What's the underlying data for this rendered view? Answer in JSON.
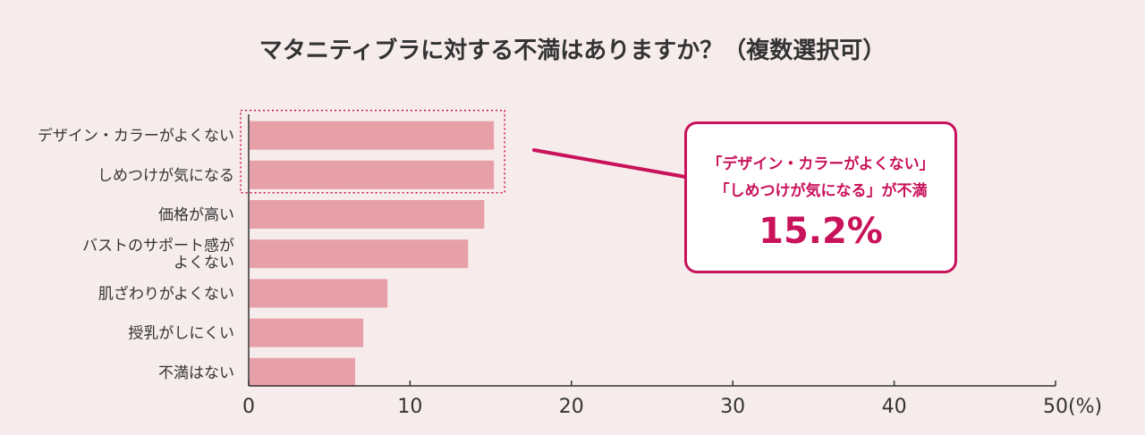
{
  "chart_data": {
    "type": "bar",
    "orientation": "horizontal",
    "title": "マタニティブラに対する不満はありますか？（複数選択可）",
    "categories": [
      [
        "デザイン・カラーがよくない"
      ],
      [
        "しめつけが気になる"
      ],
      [
        "価格が高い"
      ],
      [
        "バストのサポート感が",
        "よくない"
      ],
      [
        "肌ざわりがよくない"
      ],
      [
        "授乳がしにくい"
      ],
      [
        "不満はない"
      ]
    ],
    "values": [
      15.2,
      15.2,
      14.6,
      13.6,
      8.6,
      7.1,
      6.6
    ],
    "xlim": [
      0,
      50
    ],
    "xticks": [
      "0",
      "10",
      "20",
      "30",
      "40",
      "50"
    ],
    "x_unit": "(%)",
    "bar_color": "#e8a0a8",
    "highlight_color": "#c8125a",
    "highlight_categories": [
      0,
      1
    ]
  },
  "callout": {
    "line1": "「デザイン・カラーがよくない」",
    "line2": "「しめつけが気になる」が不満",
    "value": "15.2%"
  }
}
